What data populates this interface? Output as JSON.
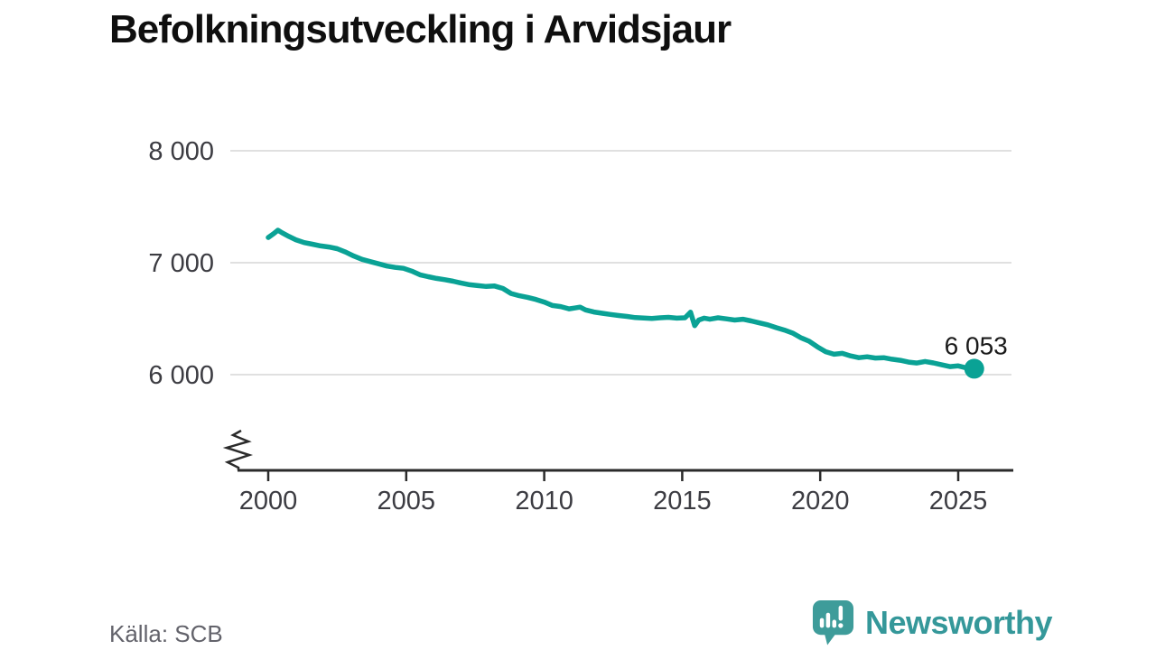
{
  "title": "Befolkningsutveckling i Arvidsjaur",
  "source": {
    "text": "Källa: SCB"
  },
  "branding": {
    "name": "Newsworthy",
    "icon": "newsworthy-speech-bubble-chart-icon"
  },
  "colors": {
    "line": "#0aa295",
    "grid": "#e0e0e0",
    "axis": "#2b2b2b",
    "tick_text": "#3c3c42",
    "title_text": "#0f0f0f",
    "end_label_text": "#1a1a1a",
    "source_text": "#63636b",
    "brand": "#35989a",
    "brand_icon": "#3e9c9a"
  },
  "chart_data": {
    "type": "line",
    "title": "Befolkningsutveckling i Arvidsjaur",
    "xlabel": "",
    "ylabel": "",
    "x_range": [
      2000,
      2025.6
    ],
    "ylim": [
      5800,
      8050
    ],
    "x_ticks": [
      2000,
      2005,
      2010,
      2015,
      2020,
      2025
    ],
    "x_tick_labels": [
      "2000",
      "2005",
      "2010",
      "2015",
      "2020",
      "2025"
    ],
    "y_ticks": [
      6000,
      7000,
      8000
    ],
    "y_tick_labels": [
      "6 000",
      "7 000",
      "8 000"
    ],
    "grid": "horizontal",
    "legend": "none",
    "axis_break": true,
    "series": [
      {
        "name": "befolkning",
        "points": [
          [
            2000.0,
            7225
          ],
          [
            2000.2,
            7260
          ],
          [
            2000.35,
            7290
          ],
          [
            2000.5,
            7268
          ],
          [
            2000.75,
            7235
          ],
          [
            2001.0,
            7205
          ],
          [
            2001.3,
            7180
          ],
          [
            2001.6,
            7165
          ],
          [
            2001.9,
            7150
          ],
          [
            2002.2,
            7140
          ],
          [
            2002.5,
            7125
          ],
          [
            2002.8,
            7095
          ],
          [
            2003.1,
            7060
          ],
          [
            2003.4,
            7030
          ],
          [
            2003.7,
            7010
          ],
          [
            2004.0,
            6990
          ],
          [
            2004.3,
            6970
          ],
          [
            2004.6,
            6958
          ],
          [
            2004.9,
            6950
          ],
          [
            2005.2,
            6925
          ],
          [
            2005.5,
            6892
          ],
          [
            2005.8,
            6875
          ],
          [
            2006.1,
            6860
          ],
          [
            2006.4,
            6848
          ],
          [
            2006.7,
            6835
          ],
          [
            2007.0,
            6818
          ],
          [
            2007.3,
            6803
          ],
          [
            2007.6,
            6795
          ],
          [
            2007.9,
            6788
          ],
          [
            2008.2,
            6792
          ],
          [
            2008.5,
            6770
          ],
          [
            2008.8,
            6725
          ],
          [
            2009.1,
            6705
          ],
          [
            2009.4,
            6690
          ],
          [
            2009.7,
            6672
          ],
          [
            2010.0,
            6648
          ],
          [
            2010.3,
            6618
          ],
          [
            2010.6,
            6608
          ],
          [
            2010.9,
            6588
          ],
          [
            2011.1,
            6595
          ],
          [
            2011.3,
            6603
          ],
          [
            2011.5,
            6578
          ],
          [
            2011.8,
            6560
          ],
          [
            2012.1,
            6548
          ],
          [
            2012.4,
            6538
          ],
          [
            2012.7,
            6528
          ],
          [
            2013.0,
            6520
          ],
          [
            2013.3,
            6510
          ],
          [
            2013.6,
            6506
          ],
          [
            2013.9,
            6502
          ],
          [
            2014.2,
            6508
          ],
          [
            2014.5,
            6512
          ],
          [
            2014.8,
            6505
          ],
          [
            2015.1,
            6508
          ],
          [
            2015.3,
            6558
          ],
          [
            2015.45,
            6438
          ],
          [
            2015.6,
            6488
          ],
          [
            2015.8,
            6505
          ],
          [
            2016.0,
            6495
          ],
          [
            2016.3,
            6508
          ],
          [
            2016.6,
            6498
          ],
          [
            2016.9,
            6488
          ],
          [
            2017.2,
            6495
          ],
          [
            2017.5,
            6480
          ],
          [
            2017.8,
            6462
          ],
          [
            2018.1,
            6445
          ],
          [
            2018.4,
            6420
          ],
          [
            2018.7,
            6398
          ],
          [
            2019.0,
            6372
          ],
          [
            2019.3,
            6330
          ],
          [
            2019.6,
            6298
          ],
          [
            2019.9,
            6248
          ],
          [
            2020.2,
            6205
          ],
          [
            2020.5,
            6182
          ],
          [
            2020.8,
            6190
          ],
          [
            2021.1,
            6168
          ],
          [
            2021.4,
            6152
          ],
          [
            2021.7,
            6160
          ],
          [
            2022.0,
            6148
          ],
          [
            2022.3,
            6152
          ],
          [
            2022.6,
            6138
          ],
          [
            2022.9,
            6128
          ],
          [
            2023.2,
            6112
          ],
          [
            2023.5,
            6104
          ],
          [
            2023.8,
            6118
          ],
          [
            2024.1,
            6105
          ],
          [
            2024.4,
            6088
          ],
          [
            2024.7,
            6072
          ],
          [
            2025.0,
            6078
          ],
          [
            2025.3,
            6060
          ],
          [
            2025.58,
            6053
          ]
        ]
      }
    ],
    "last_point": {
      "x": 2025.58,
      "value": 6053,
      "label": "6 053"
    }
  }
}
